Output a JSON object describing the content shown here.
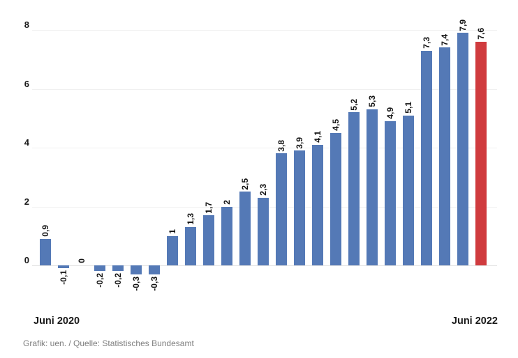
{
  "chart_data": {
    "type": "bar",
    "title": "",
    "x_start_label": "Juni 2020",
    "x_end_label": "Juni 2022",
    "values": [
      0.9,
      -0.1,
      0,
      -0.2,
      -0.2,
      -0.3,
      -0.3,
      1,
      1.3,
      1.7,
      2,
      2.5,
      2.3,
      3.8,
      3.9,
      4.1,
      4.5,
      5.2,
      5.3,
      4.9,
      5.1,
      7.3,
      7.4,
      7.9,
      7.6
    ],
    "bar_labels": [
      "0,9",
      "-0,1",
      "0",
      "-0,2",
      "-0,2",
      "-0,3",
      "-0,3",
      "1",
      "1,3",
      "1,7",
      "2",
      "2,5",
      "2,3",
      "3,8",
      "3,9",
      "4,1",
      "4,5",
      "5,2",
      "5,3",
      "4,9",
      "5,1",
      "7,3",
      "7,4",
      "7,9",
      "7,6"
    ],
    "y_ticks": [
      0,
      2,
      4,
      6,
      8
    ],
    "ylim": [
      -0.5,
      8.3
    ],
    "bar_color": "#5479B6",
    "highlight_color": "#D03B3E",
    "highlight_index": 24,
    "grid": true,
    "gridline_color": "#f0f0f0",
    "baseline_color": "#e2e2e2",
    "legend_position": "none"
  },
  "footer": {
    "credit": "Grafik: uen. / Quelle: Statistisches Bundesamt"
  }
}
